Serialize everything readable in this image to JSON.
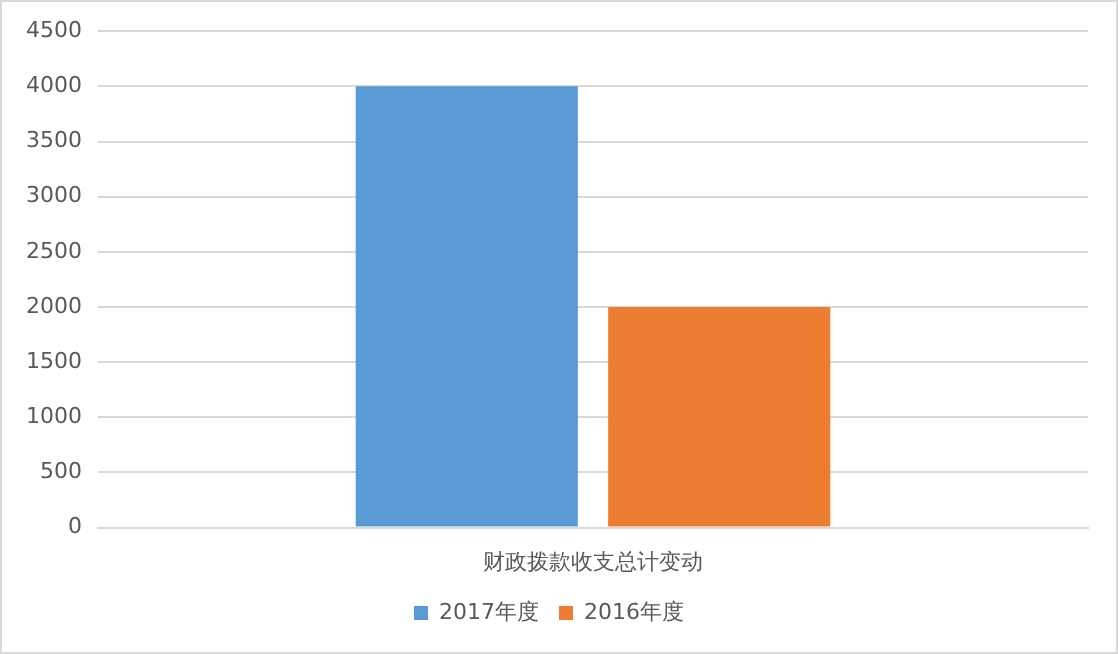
{
  "chart_data": {
    "type": "bar",
    "categories": [
      "财政拨款收支总计变动"
    ],
    "series": [
      {
        "name": "2017年度",
        "color": "#5b9bd5",
        "values": [
          4000
        ]
      },
      {
        "name": "2016年度",
        "color": "#ed7d31",
        "values": [
          2000
        ]
      }
    ],
    "ylim": [
      0,
      4500
    ],
    "yticks": [
      0,
      500,
      1000,
      1500,
      2000,
      2500,
      3000,
      3500,
      4000,
      4500
    ],
    "grid": "y",
    "legend": "bottom"
  }
}
